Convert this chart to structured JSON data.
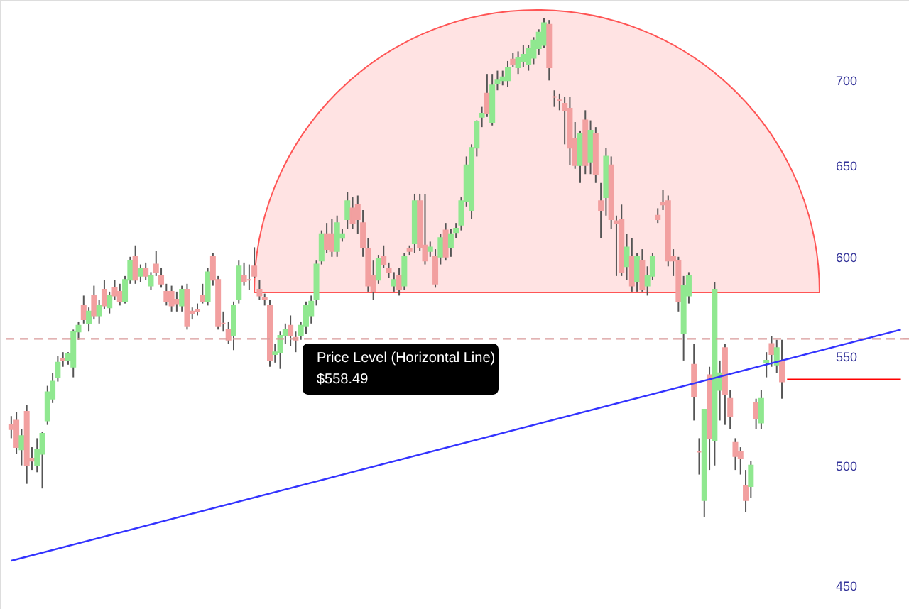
{
  "chart_data": {
    "type": "candlestick",
    "categories": [
      null,
      null,
      null,
      null,
      null,
      null,
      null,
      null,
      null,
      null,
      null,
      null,
      null,
      null,
      null,
      null,
      null,
      null,
      null,
      null,
      null,
      null,
      null,
      null,
      null,
      null,
      null,
      null,
      null,
      null,
      null,
      null,
      null,
      null,
      null,
      null,
      null,
      null,
      null,
      null,
      null,
      null,
      null,
      null,
      null,
      null,
      null,
      null,
      null,
      null,
      null,
      null,
      null,
      null,
      null,
      null,
      null,
      null,
      null,
      null,
      null,
      null,
      null,
      null,
      null,
      null,
      null,
      null,
      null,
      null,
      null,
      null,
      null,
      null,
      null,
      null,
      null,
      null,
      null,
      null,
      null,
      null,
      null,
      null,
      null,
      null,
      null,
      null,
      null,
      null,
      null,
      null,
      null,
      null,
      null,
      null,
      null,
      null,
      null,
      null,
      null,
      null,
      null,
      null,
      null,
      null,
      null,
      null,
      null,
      null,
      null,
      null,
      null,
      null,
      null,
      null,
      null,
      null,
      null,
      null,
      null,
      null,
      null,
      null,
      null,
      null,
      null,
      null,
      null,
      null,
      null,
      null,
      null,
      null,
      null,
      null,
      null,
      null,
      null,
      null,
      null,
      null,
      null,
      null,
      null,
      null,
      null,
      null,
      null,
      null,
      null,
      null,
      null,
      null,
      null,
      null,
      null,
      null,
      null,
      null,
      null,
      null,
      null,
      null,
      null,
      null,
      null,
      null,
      null,
      null,
      null,
      null,
      null
    ],
    "ohlc": [
      [
        518,
        522,
        512,
        516
      ],
      [
        520,
        524,
        505,
        508
      ],
      [
        507,
        516,
        500,
        513
      ],
      [
        524,
        527,
        492,
        500
      ],
      [
        503,
        508,
        498,
        502
      ],
      [
        500,
        512,
        497,
        507
      ],
      [
        505,
        515,
        490,
        514
      ],
      [
        520,
        536,
        518,
        533
      ],
      [
        530,
        542,
        528,
        538
      ],
      [
        540,
        550,
        538,
        547
      ],
      [
        549,
        552,
        545,
        548
      ],
      [
        548,
        552,
        546,
        551
      ],
      [
        545,
        563,
        540,
        562
      ],
      [
        562,
        567,
        558,
        565
      ],
      [
        575,
        580,
        566,
        568
      ],
      [
        566,
        574,
        562,
        572
      ],
      [
        580,
        585,
        568,
        570
      ],
      [
        570,
        578,
        566,
        575
      ],
      [
        583,
        588,
        573,
        575
      ],
      [
        574,
        582,
        571,
        580
      ],
      [
        584,
        588,
        578,
        580
      ],
      [
        582,
        586,
        575,
        577
      ],
      [
        577,
        590,
        576,
        588
      ],
      [
        588,
        600,
        586,
        598
      ],
      [
        600,
        606,
        586,
        588
      ],
      [
        590,
        596,
        587,
        594
      ],
      [
        594,
        597,
        588,
        590
      ],
      [
        585,
        592,
        583,
        590
      ],
      [
        596,
        603,
        590,
        592
      ],
      [
        590,
        594,
        584,
        586
      ],
      [
        582,
        586,
        575,
        577
      ],
      [
        582,
        585,
        572,
        575
      ],
      [
        578,
        582,
        572,
        576
      ],
      [
        575,
        585,
        572,
        583
      ],
      [
        583,
        586,
        563,
        565
      ],
      [
        572,
        574,
        568,
        571
      ],
      [
        573,
        576,
        570,
        572
      ],
      [
        580,
        586,
        576,
        577
      ],
      [
        577,
        594,
        575,
        592
      ],
      [
        600,
        602,
        585,
        588
      ],
      [
        588,
        590,
        563,
        565
      ],
      [
        566,
        572,
        562,
        566
      ],
      [
        563,
        567,
        556,
        558
      ],
      [
        560,
        577,
        553,
        575
      ],
      [
        578,
        598,
        576,
        595
      ],
      [
        590,
        597,
        585,
        587
      ],
      [
        588,
        596,
        583,
        588
      ],
      [
        595,
        605,
        589,
        590
      ],
      [
        583,
        588,
        578,
        580
      ],
      [
        579,
        581,
        575,
        578
      ],
      [
        575,
        578,
        545,
        548
      ],
      [
        551,
        556,
        547,
        552
      ],
      [
        552,
        562,
        544,
        560
      ],
      [
        560,
        566,
        556,
        563
      ],
      [
        565,
        570,
        555,
        560
      ],
      [
        559,
        562,
        552,
        558
      ],
      [
        560,
        567,
        558,
        565
      ],
      [
        565,
        577,
        561,
        575
      ],
      [
        570,
        580,
        566,
        577
      ],
      [
        578,
        598,
        575,
        596
      ],
      [
        598,
        614,
        596,
        612
      ],
      [
        612,
        618,
        602,
        604
      ],
      [
        612,
        620,
        600,
        603
      ],
      [
        603,
        622,
        600,
        618
      ],
      [
        610,
        615,
        608,
        612
      ],
      [
        620,
        635,
        615,
        630
      ],
      [
        626,
        632,
        615,
        618
      ],
      [
        628,
        633,
        612,
        620
      ],
      [
        618,
        625,
        600,
        605
      ],
      [
        604,
        610,
        582,
        585
      ],
      [
        590,
        598,
        578,
        582
      ],
      [
        588,
        601,
        586,
        599
      ],
      [
        600,
        606,
        594,
        596
      ],
      [
        594,
        597,
        589,
        592
      ],
      [
        585,
        592,
        582,
        588
      ],
      [
        590,
        594,
        580,
        583
      ],
      [
        585,
        602,
        583,
        600
      ],
      [
        604,
        606,
        601,
        603
      ],
      [
        607,
        634,
        602,
        630
      ],
      [
        630,
        634,
        603,
        605
      ],
      [
        606,
        634,
        596,
        598
      ],
      [
        603,
        608,
        600,
        605
      ],
      [
        600,
        604,
        584,
        586
      ],
      [
        600,
        612,
        596,
        610
      ],
      [
        614,
        618,
        598,
        600
      ],
      [
        605,
        615,
        600,
        612
      ],
      [
        613,
        618,
        610,
        615
      ],
      [
        617,
        632,
        614,
        630
      ],
      [
        630,
        655,
        627,
        650
      ],
      [
        625,
        662,
        620,
        660
      ],
      [
        660,
        676,
        655,
        675
      ],
      [
        678,
        684,
        672,
        680
      ],
      [
        692,
        704,
        678,
        680
      ],
      [
        675,
        704,
        673,
        697
      ],
      [
        698,
        706,
        694,
        700
      ],
      [
        700,
        706,
        697,
        702
      ],
      [
        700,
        712,
        696,
        708
      ],
      [
        713,
        717,
        708,
        710
      ],
      [
        708,
        718,
        704,
        714
      ],
      [
        712,
        722,
        708,
        716
      ],
      [
        710,
        722,
        706,
        720
      ],
      [
        714,
        727,
        710,
        725
      ],
      [
        720,
        732,
        716,
        730
      ],
      [
        722,
        739,
        720,
        736
      ],
      [
        735,
        738,
        700,
        708
      ],
      [
        690,
        694,
        684,
        690
      ],
      [
        688,
        692,
        682,
        688
      ],
      [
        686,
        690,
        662,
        682
      ],
      [
        683,
        690,
        650,
        660
      ],
      [
        665,
        675,
        648,
        650
      ],
      [
        650,
        670,
        640,
        668
      ],
      [
        676,
        682,
        645,
        650
      ],
      [
        652,
        676,
        645,
        670
      ],
      [
        668,
        672,
        640,
        645
      ],
      [
        630,
        640,
        610,
        625
      ],
      [
        632,
        660,
        622,
        655
      ],
      [
        650,
        655,
        615,
        620
      ],
      [
        619,
        622,
        590,
        618
      ],
      [
        620,
        628,
        590,
        592
      ],
      [
        595,
        612,
        588,
        605
      ],
      [
        600,
        610,
        582,
        585
      ],
      [
        587,
        602,
        582,
        600
      ],
      [
        598,
        604,
        582,
        583
      ],
      [
        585,
        595,
        580,
        590
      ],
      [
        590,
        602,
        588,
        600
      ],
      [
        622,
        626,
        618,
        620
      ],
      [
        629,
        636,
        625,
        628
      ],
      [
        630,
        633,
        595,
        598
      ],
      [
        600,
        604,
        590,
        598
      ],
      [
        598,
        600,
        572,
        577
      ],
      [
        561,
        590,
        548,
        585
      ],
      [
        580,
        592,
        576,
        590
      ],
      [
        546,
        556,
        520,
        531
      ],
      [
        506,
        512,
        496,
        506
      ],
      [
        485,
        525,
        478,
        525
      ],
      [
        541,
        545,
        498,
        512
      ],
      [
        511,
        587,
        500,
        583
      ],
      [
        534,
        548,
        520,
        542
      ],
      [
        554,
        556,
        518,
        532
      ],
      [
        530,
        534,
        516,
        522
      ],
      [
        510,
        512,
        498,
        504
      ],
      [
        506,
        508,
        496,
        503
      ],
      [
        491,
        498,
        480,
        485
      ],
      [
        491,
        502,
        486,
        500
      ],
      [
        528,
        530,
        516,
        521
      ],
      [
        519,
        534,
        516,
        530
      ],
      [
        547,
        552,
        540,
        548
      ],
      [
        556,
        560,
        545,
        551
      ],
      [
        546,
        558,
        542,
        554
      ],
      [
        548,
        558,
        530,
        538
      ],
      null,
      null,
      null,
      null,
      null,
      null,
      null,
      null,
      null,
      null,
      null,
      null,
      null,
      null,
      null,
      null,
      null,
      null,
      null,
      null,
      null,
      null,
      null
    ],
    "colors": [
      "#f2a0a0",
      "#f2a0a0",
      "#90e890",
      "#f2a0a0",
      "#f2a0a0",
      "#90e890",
      "#90e890",
      "#90e890",
      "#90e890",
      "#90e890",
      "#f2a0a0",
      "#90e890",
      "#90e890",
      "#90e890",
      "#f2a0a0",
      "#90e890",
      "#f2a0a0",
      "#90e890",
      "#f2a0a0",
      "#90e890",
      "#f2a0a0",
      "#f2a0a0",
      "#90e890",
      "#90e890",
      "#f2a0a0",
      "#90e890",
      "#f2a0a0",
      "#90e890",
      "#f2a0a0",
      "#f2a0a0",
      "#f2a0a0",
      "#f2a0a0",
      "#f2a0a0",
      "#90e890",
      "#f2a0a0",
      "#f2a0a0",
      "#f2a0a0",
      "#f2a0a0",
      "#90e890",
      "#f2a0a0",
      "#f2a0a0",
      "#f2a0a0",
      "#f2a0a0",
      "#90e890",
      "#90e890",
      "#f2a0a0",
      "#f2a0a0",
      "#f2a0a0",
      "#f2a0a0",
      "#f2a0a0",
      "#f2a0a0",
      "#90e890",
      "#90e890",
      "#90e890",
      "#f2a0a0",
      "#f2a0a0",
      "#90e890",
      "#90e890",
      "#90e890",
      "#90e890",
      "#90e890",
      "#f2a0a0",
      "#f2a0a0",
      "#90e890",
      "#90e890",
      "#90e890",
      "#f2a0a0",
      "#f2a0a0",
      "#f2a0a0",
      "#f2a0a0",
      "#f2a0a0",
      "#90e890",
      "#f2a0a0",
      "#f2a0a0",
      "#90e890",
      "#f2a0a0",
      "#90e890",
      "#f2a0a0",
      "#90e890",
      "#f2a0a0",
      "#f2a0a0",
      "#90e890",
      "#f2a0a0",
      "#90e890",
      "#f2a0a0",
      "#90e890",
      "#90e890",
      "#90e890",
      "#90e890",
      "#90e890",
      "#90e890",
      "#90e890",
      "#f2a0a0",
      "#90e890",
      "#90e890",
      "#90e890",
      "#90e890",
      "#f2a0a0",
      "#90e890",
      "#90e890",
      "#90e890",
      "#90e890",
      "#90e890",
      "#90e890",
      "#f2a0a0",
      "#f2a0a0",
      "#f2a0a0",
      "#f2a0a0",
      "#f2a0a0",
      "#f2a0a0",
      "#90e890",
      "#f2a0a0",
      "#90e890",
      "#f2a0a0",
      "#f2a0a0",
      "#90e890",
      "#f2a0a0",
      "#f2a0a0",
      "#f2a0a0",
      "#90e890",
      "#f2a0a0",
      "#90e890",
      "#f2a0a0",
      "#90e890",
      "#90e890",
      "#f2a0a0",
      "#f2a0a0",
      "#f2a0a0",
      "#f2a0a0",
      "#f2a0a0",
      "#90e890",
      "#90e890",
      "#f2a0a0",
      "#f2a0a0",
      "#90e890",
      "#f2a0a0",
      "#90e890",
      "#90e890",
      "#f2a0a0",
      "#f2a0a0",
      "#f2a0a0",
      "#f2a0a0",
      "#f2a0a0",
      "#90e890",
      "#f2a0a0",
      "#90e890",
      "#90e890",
      "#f2a0a0",
      "#90e890",
      "#f2a0a0",
      null,
      null,
      null,
      null,
      null,
      null,
      null,
      null,
      null,
      null,
      null,
      null,
      null,
      null,
      null,
      null,
      null,
      null,
      null,
      null,
      null,
      null,
      null
    ],
    "series": [
      {
        "type": "line",
        "values": [
          460,
          null,
          null,
          null,
          null,
          null,
          null,
          null,
          null,
          null,
          null,
          null,
          null,
          null,
          null,
          null,
          null,
          null,
          null,
          null,
          null,
          null,
          null,
          null,
          null,
          null,
          null,
          null,
          null,
          null,
          null,
          null,
          null,
          null,
          null,
          null,
          null,
          null,
          null,
          null,
          null,
          null,
          null,
          null,
          null,
          null,
          null,
          null,
          null,
          null,
          null,
          null,
          null,
          null,
          null,
          null,
          null,
          null,
          null,
          null,
          null,
          null,
          null,
          null,
          null,
          null,
          null,
          null,
          null,
          null,
          null,
          null,
          null,
          null,
          null,
          null,
          null,
          null,
          null,
          null,
          null,
          null,
          null,
          null,
          null,
          null,
          null,
          null,
          null,
          null,
          null,
          null,
          null,
          null,
          null,
          null,
          null,
          null,
          null,
          null,
          null,
          null,
          null,
          null,
          null,
          null,
          null,
          null,
          null,
          null,
          null,
          null,
          null,
          null,
          null,
          null,
          null,
          null,
          null,
          null,
          null,
          null,
          null,
          null,
          null,
          null,
          null,
          null,
          null,
          null,
          null,
          null,
          null,
          null,
          null,
          null,
          null,
          null,
          null,
          null,
          null,
          null,
          null,
          null,
          null,
          null,
          null,
          null,
          null,
          null,
          null,
          null,
          null,
          null,
          null,
          null,
          null,
          null,
          null,
          null,
          null,
          null,
          null,
          null,
          null,
          null,
          null,
          null,
          null,
          null,
          null,
          null,
          563
        ],
        "color": "#3333ff"
      },
      {
        "type": "line",
        "values": [
          null,
          null,
          null,
          null,
          null,
          null,
          null,
          null,
          null,
          null,
          null,
          null,
          null,
          null,
          null,
          null,
          null,
          null,
          null,
          null,
          null,
          null,
          null,
          null,
          null,
          null,
          null,
          null,
          null,
          null,
          null,
          null,
          null,
          null,
          null,
          null,
          null,
          null,
          null,
          null,
          null,
          null,
          null,
          null,
          null,
          null,
          null,
          null,
          null,
          null,
          null,
          null,
          null,
          null,
          null,
          null,
          null,
          null,
          null,
          null,
          null,
          null,
          null,
          null,
          null,
          null,
          null,
          null,
          null,
          null,
          null,
          null,
          null,
          null,
          null,
          null,
          null,
          null,
          null,
          null,
          null,
          null,
          null,
          null,
          null,
          null,
          null,
          null,
          null,
          null,
          null,
          null,
          null,
          null,
          null,
          null,
          null,
          null,
          null,
          null,
          null,
          null,
          null,
          null,
          null,
          null,
          null,
          null,
          null,
          null,
          null,
          null,
          null,
          null,
          null,
          null,
          null,
          null,
          null,
          null,
          null,
          null,
          null,
          null,
          null,
          null,
          null,
          null,
          null,
          null,
          null,
          null,
          null,
          null,
          null,
          null,
          null,
          null,
          null,
          null,
          null,
          null,
          null,
          null,
          null,
          null,
          null,
          null,
          null,
          null,
          539,
          539,
          539,
          539,
          539,
          539,
          539,
          539,
          539,
          539,
          539,
          539,
          539,
          539,
          539,
          539,
          539,
          539,
          539,
          539,
          539,
          539,
          539
        ],
        "color": "#ff0000"
      }
    ],
    "ylim": [
      441,
      751
    ],
    "yticks": [
      450,
      500,
      550,
      600,
      650,
      700
    ],
    "log": true,
    "tick_labels": "y",
    "ref_lines": [
      {
        "axis": "y",
        "value": 558.49,
        "label": null,
        "color": "#d99a9a",
        "line_style": "dashed"
      }
    ],
    "annotations": [
      "Price Level (Horizontal Line)",
      "$558.49"
    ]
  }
}
